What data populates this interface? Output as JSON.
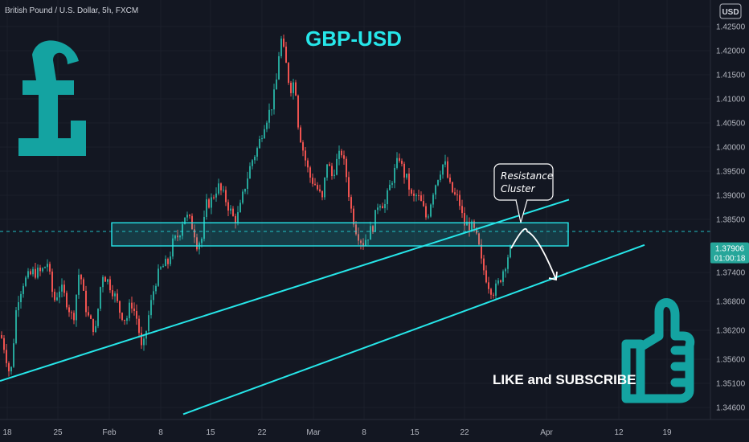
{
  "symbol_label": "British Pound / U.S. Dollar, 5h, FXCM",
  "title": "GBP-USD",
  "currency_button": "USD",
  "callout": {
    "line1": "Resistance",
    "line2": "Cluster"
  },
  "like_text": "LIKE and SUBSCRIBE",
  "current_price": {
    "value": "1.37906",
    "countdown": "01:00:18"
  },
  "icons": {
    "pound": "pound-sign-icon",
    "thumbs_up": "thumbs-up-icon"
  },
  "colors": {
    "background": "#131722",
    "accent": "#26e6e9",
    "pound": "#14a3a1",
    "up": "#26a69a",
    "down": "#ef5350",
    "axis_text": "#b2b5be"
  },
  "chart_data": {
    "type": "candlestick",
    "title": "GBP-USD",
    "x_ticks": [
      "18",
      "25",
      "Feb",
      "8",
      "15",
      "22",
      "Mar",
      "8",
      "15",
      "22",
      "Apr",
      "12",
      "19"
    ],
    "y_ticks": [
      "1.34600",
      "1.35100",
      "1.35600",
      "1.36200",
      "1.36800",
      "1.37400",
      "1.38500",
      "1.39000",
      "1.39500",
      "1.40000",
      "1.40500",
      "1.41000",
      "1.41500",
      "1.42000",
      "1.42500"
    ],
    "ylim": [
      1.3435,
      1.4305
    ],
    "current_price": 1.37906,
    "resistance_zone": {
      "high": 1.3843,
      "low": 1.3795
    },
    "resistance_level": 1.3825,
    "price_path": [
      [
        0,
        1.361
      ],
      [
        5,
        1.358
      ],
      [
        12,
        1.352
      ],
      [
        20,
        1.368
      ],
      [
        28,
        1.372
      ],
      [
        40,
        1.374
      ],
      [
        50,
        1.374
      ],
      [
        58,
        1.376
      ],
      [
        66,
        1.368
      ],
      [
        74,
        1.371
      ],
      [
        82,
        1.368
      ],
      [
        90,
        1.364
      ],
      [
        98,
        1.375
      ],
      [
        104,
        1.368
      ],
      [
        110,
        1.364
      ],
      [
        118,
        1.362
      ],
      [
        126,
        1.374
      ],
      [
        134,
        1.372
      ],
      [
        140,
        1.37
      ],
      [
        148,
        1.366
      ],
      [
        156,
        1.364
      ],
      [
        162,
        1.368
      ],
      [
        170,
        1.364
      ],
      [
        176,
        1.357
      ],
      [
        184,
        1.365
      ],
      [
        192,
        1.372
      ],
      [
        200,
        1.375
      ],
      [
        208,
        1.376
      ],
      [
        214,
        1.38
      ],
      [
        222,
        1.382
      ],
      [
        228,
        1.386
      ],
      [
        234,
        1.385
      ],
      [
        240,
        1.383
      ],
      [
        244,
        1.38
      ],
      [
        250,
        1.381
      ],
      [
        256,
        1.388
      ],
      [
        262,
        1.389
      ],
      [
        270,
        1.392
      ],
      [
        280,
        1.389
      ],
      [
        290,
        1.385
      ],
      [
        296,
        1.386
      ],
      [
        304,
        1.392
      ],
      [
        312,
        1.397
      ],
      [
        320,
        1.4
      ],
      [
        328,
        1.405
      ],
      [
        336,
        1.408
      ],
      [
        342,
        1.412
      ],
      [
        348,
        1.423
      ],
      [
        354,
        1.418
      ],
      [
        360,
        1.412
      ],
      [
        366,
        1.414
      ],
      [
        370,
        1.405
      ],
      [
        374,
        1.401
      ],
      [
        378,
        1.398
      ],
      [
        384,
        1.394
      ],
      [
        392,
        1.392
      ],
      [
        400,
        1.389
      ],
      [
        406,
        1.397
      ],
      [
        412,
        1.394
      ],
      [
        418,
        1.397
      ],
      [
        424,
        1.399
      ],
      [
        430,
        1.394
      ],
      [
        436,
        1.387
      ],
      [
        442,
        1.383
      ],
      [
        450,
        1.38
      ],
      [
        458,
        1.382
      ],
      [
        464,
        1.384
      ],
      [
        470,
        1.389
      ],
      [
        478,
        1.388
      ],
      [
        486,
        1.393
      ],
      [
        492,
        1.396
      ],
      [
        496,
        1.398
      ],
      [
        500,
        1.395
      ],
      [
        506,
        1.393
      ],
      [
        512,
        1.389
      ],
      [
        518,
        1.39
      ],
      [
        524,
        1.388
      ],
      [
        530,
        1.385
      ],
      [
        538,
        1.391
      ],
      [
        546,
        1.395
      ],
      [
        552,
        1.397
      ],
      [
        558,
        1.392
      ],
      [
        564,
        1.39
      ],
      [
        570,
        1.389
      ],
      [
        576,
        1.384
      ],
      [
        582,
        1.384
      ],
      [
        588,
        1.383
      ],
      [
        594,
        1.38
      ],
      [
        598,
        1.376
      ],
      [
        604,
        1.373
      ],
      [
        608,
        1.371
      ],
      [
        614,
        1.37
      ],
      [
        620,
        1.372
      ],
      [
        626,
        1.375
      ],
      [
        632,
        1.378
      ],
      [
        636,
        1.379
      ]
    ],
    "annotations": [
      {
        "type": "rectangle",
        "label": "resistance-zone",
        "top": 1.3843,
        "bottom": 1.3795
      },
      {
        "type": "trendline",
        "label": "upper-trendline",
        "from": [
          0,
          1.3515
        ],
        "to": [
          708,
          1.3891
        ]
      },
      {
        "type": "trendline",
        "label": "lower-trendline",
        "from": [
          228,
          1.3446
        ],
        "to": [
          802,
          1.3797
        ]
      },
      {
        "type": "dashed-level",
        "label": "resistance-level",
        "value": 1.3825
      },
      {
        "type": "projection-arrow",
        "label": "bearish-projection",
        "points": [
          [
            636,
            1.379
          ],
          [
            656,
            1.3825
          ],
          [
            692,
            1.3725
          ]
        ]
      }
    ]
  }
}
